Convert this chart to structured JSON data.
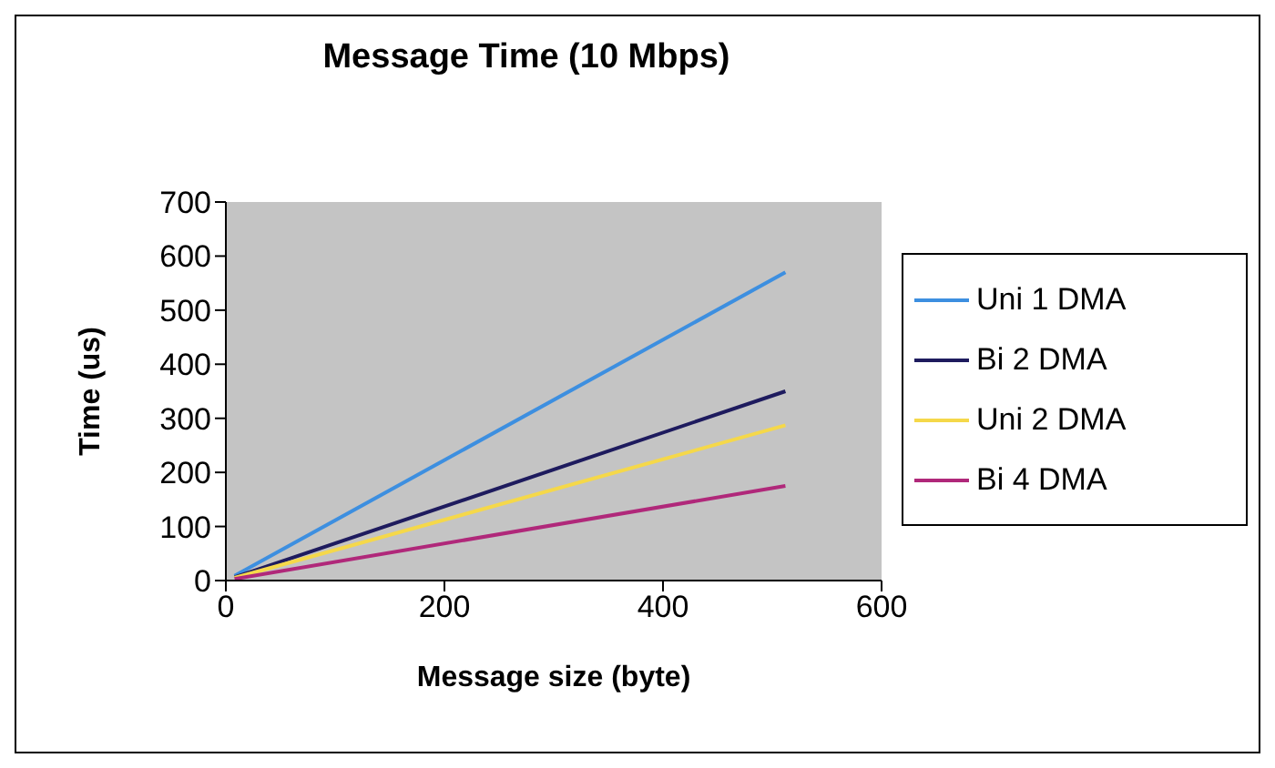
{
  "chart_data": {
    "type": "line",
    "title": "Message Time (10 Mbps)",
    "xlabel": "Message size (byte)",
    "ylabel": "Time (us)",
    "x": [
      8,
      512
    ],
    "series": [
      {
        "name": "Uni 1 DMA",
        "color": "#3d8fe0",
        "values": [
          9,
          570
        ]
      },
      {
        "name": "Bi 2 DMA",
        "color": "#1e1b5e",
        "values": [
          6,
          350
        ]
      },
      {
        "name": "Uni 2 DMA",
        "color": "#f5d84a",
        "values": [
          5,
          287
        ]
      },
      {
        "name": "Bi 4 DMA",
        "color": "#b0287a",
        "values": [
          3,
          175
        ]
      }
    ],
    "xlim": [
      0,
      600
    ],
    "xticks": [
      0,
      200,
      400,
      600
    ],
    "ylim": [
      0,
      700
    ],
    "yticks": [
      0,
      100,
      200,
      300,
      400,
      500,
      600,
      700
    ],
    "grid": false,
    "legend": "right",
    "marker": "none",
    "line_style": "solid"
  }
}
